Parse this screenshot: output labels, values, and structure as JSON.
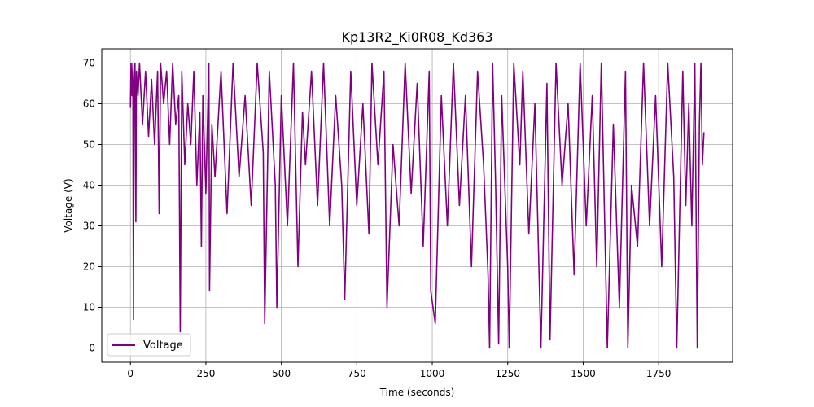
{
  "chart_data": {
    "type": "line",
    "title": "Kp13R2_Ki0R08_Kd363",
    "xlabel": "Time (seconds)",
    "ylabel": "Voltage (V)",
    "xlim": [
      -95,
      1995
    ],
    "ylim": [
      -3.5,
      73.5
    ],
    "xticks": [
      0,
      250,
      500,
      750,
      1000,
      1250,
      1500,
      1750
    ],
    "yticks": [
      0,
      10,
      20,
      30,
      40,
      50,
      60,
      70
    ],
    "grid": true,
    "legend": "lower-left",
    "series": [
      {
        "name": "Voltage",
        "color": "#800080",
        "points": [
          [
            0,
            59
          ],
          [
            2,
            70
          ],
          [
            5,
            62
          ],
          [
            8,
            70
          ],
          [
            10,
            7
          ],
          [
            12,
            65
          ],
          [
            15,
            70
          ],
          [
            18,
            31
          ],
          [
            20,
            68
          ],
          [
            25,
            62
          ],
          [
            30,
            70
          ],
          [
            40,
            55
          ],
          [
            50,
            68
          ],
          [
            60,
            52
          ],
          [
            70,
            66
          ],
          [
            80,
            50
          ],
          [
            90,
            68
          ],
          [
            95,
            33
          ],
          [
            100,
            70
          ],
          [
            110,
            60
          ],
          [
            120,
            68
          ],
          [
            130,
            50
          ],
          [
            140,
            70
          ],
          [
            150,
            55
          ],
          [
            160,
            62
          ],
          [
            165,
            4
          ],
          [
            170,
            68
          ],
          [
            180,
            45
          ],
          [
            190,
            60
          ],
          [
            200,
            50
          ],
          [
            210,
            68
          ],
          [
            220,
            40
          ],
          [
            230,
            58
          ],
          [
            235,
            25
          ],
          [
            240,
            62
          ],
          [
            250,
            38
          ],
          [
            260,
            70
          ],
          [
            262,
            14
          ],
          [
            270,
            55
          ],
          [
            280,
            42
          ],
          [
            300,
            68
          ],
          [
            320,
            33
          ],
          [
            340,
            70
          ],
          [
            360,
            42
          ],
          [
            380,
            62
          ],
          [
            400,
            35
          ],
          [
            420,
            70
          ],
          [
            440,
            48
          ],
          [
            445,
            6
          ],
          [
            460,
            68
          ],
          [
            480,
            40
          ],
          [
            485,
            10
          ],
          [
            500,
            62
          ],
          [
            520,
            30
          ],
          [
            540,
            70
          ],
          [
            555,
            20
          ],
          [
            570,
            58
          ],
          [
            580,
            45
          ],
          [
            600,
            68
          ],
          [
            620,
            35
          ],
          [
            640,
            70
          ],
          [
            660,
            30
          ],
          [
            680,
            62
          ],
          [
            700,
            40
          ],
          [
            710,
            12
          ],
          [
            730,
            68
          ],
          [
            750,
            35
          ],
          [
            770,
            60
          ],
          [
            790,
            28
          ],
          [
            800,
            70
          ],
          [
            820,
            45
          ],
          [
            840,
            68
          ],
          [
            850,
            10
          ],
          [
            870,
            50
          ],
          [
            890,
            30
          ],
          [
            910,
            70
          ],
          [
            930,
            38
          ],
          [
            950,
            65
          ],
          [
            970,
            25
          ],
          [
            990,
            68
          ],
          [
            995,
            14
          ],
          [
            1010,
            6
          ],
          [
            1030,
            62
          ],
          [
            1050,
            30
          ],
          [
            1070,
            70
          ],
          [
            1090,
            35
          ],
          [
            1110,
            62
          ],
          [
            1130,
            20
          ],
          [
            1150,
            68
          ],
          [
            1170,
            45
          ],
          [
            1185,
            18
          ],
          [
            1190,
            0
          ],
          [
            1200,
            70
          ],
          [
            1210,
            40
          ],
          [
            1220,
            1
          ],
          [
            1230,
            62
          ],
          [
            1250,
            20
          ],
          [
            1255,
            0
          ],
          [
            1270,
            70
          ],
          [
            1290,
            45
          ],
          [
            1300,
            68
          ],
          [
            1320,
            28
          ],
          [
            1340,
            60
          ],
          [
            1360,
            0
          ],
          [
            1380,
            65
          ],
          [
            1390,
            2
          ],
          [
            1410,
            70
          ],
          [
            1430,
            40
          ],
          [
            1450,
            60
          ],
          [
            1470,
            18
          ],
          [
            1490,
            70
          ],
          [
            1510,
            30
          ],
          [
            1530,
            62
          ],
          [
            1545,
            20
          ],
          [
            1560,
            70
          ],
          [
            1580,
            0
          ],
          [
            1600,
            55
          ],
          [
            1620,
            10
          ],
          [
            1640,
            68
          ],
          [
            1648,
            0
          ],
          [
            1660,
            40
          ],
          [
            1680,
            25
          ],
          [
            1700,
            70
          ],
          [
            1720,
            30
          ],
          [
            1740,
            62
          ],
          [
            1760,
            20
          ],
          [
            1780,
            70
          ],
          [
            1800,
            42
          ],
          [
            1810,
            0
          ],
          [
            1830,
            68
          ],
          [
            1840,
            35
          ],
          [
            1850,
            60
          ],
          [
            1860,
            30
          ],
          [
            1870,
            70
          ],
          [
            1878,
            0
          ],
          [
            1885,
            55
          ],
          [
            1890,
            70
          ],
          [
            1895,
            45
          ],
          [
            1900,
            53
          ]
        ]
      }
    ]
  }
}
